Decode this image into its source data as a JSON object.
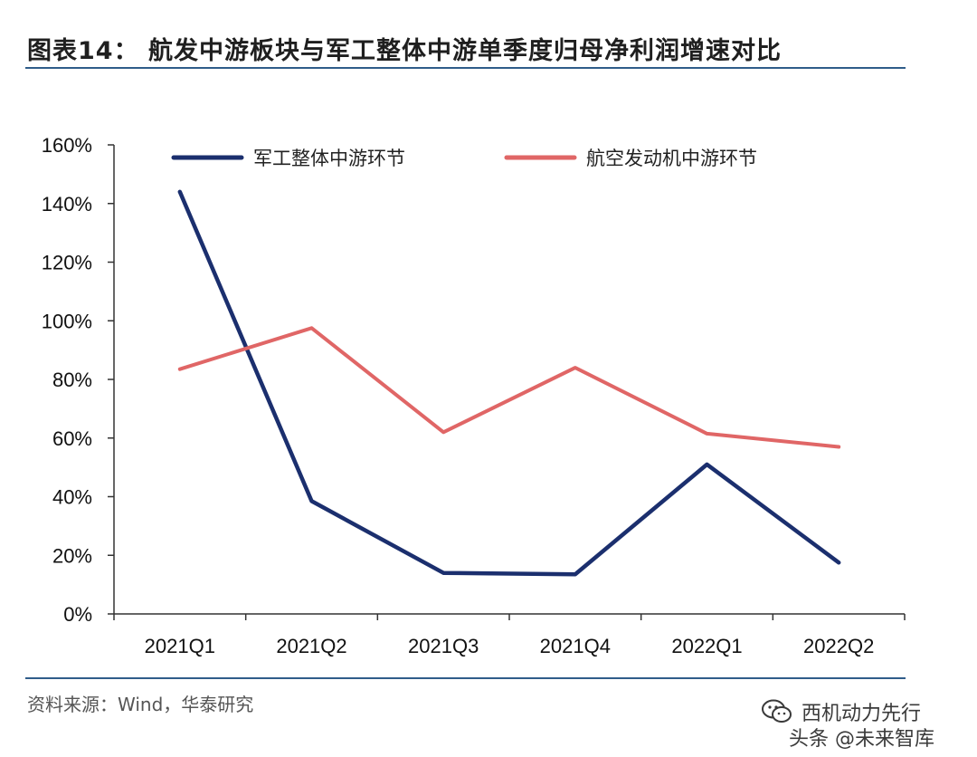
{
  "title": "图表14：  航发中游板块与军工整体中游单季度归母净利润增速对比",
  "source": "资料来源：Wind，华泰研究",
  "watermark": {
    "line1": "西机动力先行",
    "line2": "头条 @未来智库",
    "icon": "wechat-icon"
  },
  "chart_data": {
    "type": "line",
    "categories": [
      "2021Q1",
      "2021Q2",
      "2021Q3",
      "2021Q4",
      "2022Q1",
      "2022Q2"
    ],
    "ylim": [
      0,
      160
    ],
    "yticks": [
      0,
      20,
      40,
      60,
      80,
      100,
      120,
      140,
      160
    ],
    "ytick_labels": [
      "0%",
      "20%",
      "40%",
      "60%",
      "80%",
      "100%",
      "120%",
      "140%",
      "160%"
    ],
    "grid": false,
    "legend_position": "top",
    "series": [
      {
        "name": "军工整体中游环节",
        "color": "#1b2f6e",
        "values": [
          144,
          38.5,
          14,
          13.5,
          51,
          17.5
        ]
      },
      {
        "name": "航空发动机中游环节",
        "color": "#e06666",
        "values": [
          83.5,
          97.5,
          62,
          84,
          61.5,
          57
        ]
      }
    ]
  }
}
